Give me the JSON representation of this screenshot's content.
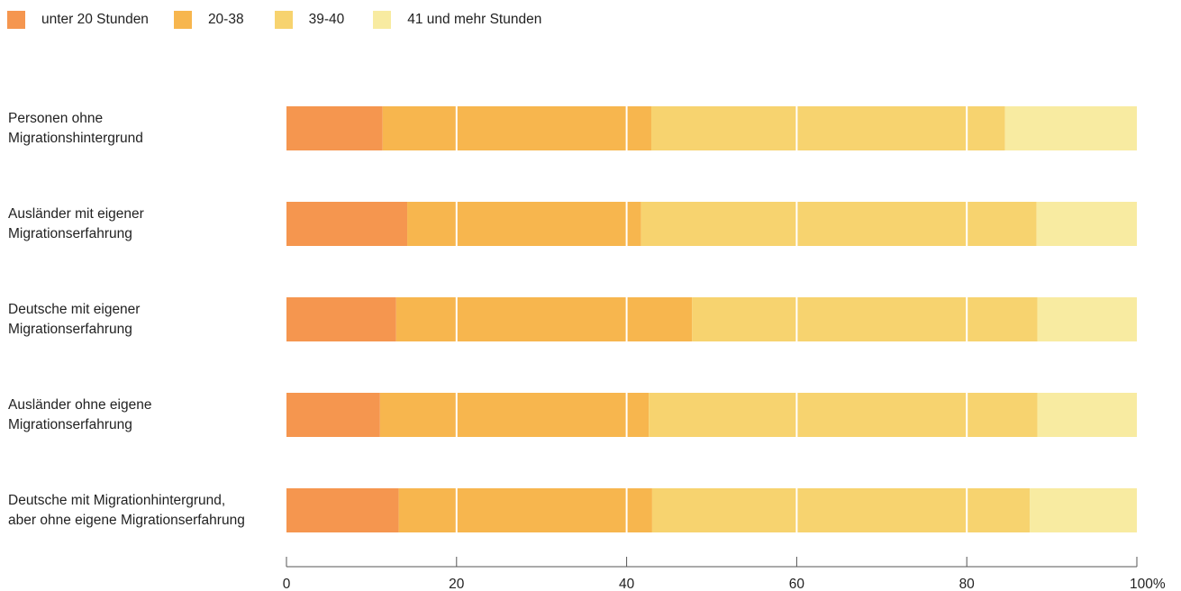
{
  "chart_data": {
    "type": "bar",
    "orientation": "horizontal",
    "stacked": true,
    "categories": [
      [
        "Personen ohne",
        "Migrationshintergrund"
      ],
      [
        "Ausländer mit eigener",
        "Migrationserfahrung"
      ],
      [
        "Deutsche mit eigener",
        "Migrationserfahrung"
      ],
      [
        "Ausländer ohne eigene",
        "Migrationserfahrung"
      ],
      [
        "Deutsche mit Migrationhintergrund,",
        "aber ohne eigene Migrationserfahrung"
      ]
    ],
    "series": [
      {
        "name": "unter 20 Stunden",
        "color": "#f5964f",
        "values": [
          11.3,
          14.2,
          12.9,
          11.0,
          13.2
        ]
      },
      {
        "name": "20-38",
        "color": "#f7b64e",
        "values": [
          31.6,
          27.5,
          34.8,
          31.6,
          29.8
        ]
      },
      {
        "name": "39-40",
        "color": "#f7d36f",
        "values": [
          41.6,
          46.5,
          40.6,
          45.7,
          44.4
        ]
      },
      {
        "name": "41 und mehr Stunden",
        "color": "#f8eba1",
        "values": [
          15.5,
          11.8,
          11.7,
          11.7,
          12.6
        ]
      }
    ],
    "xticks": [
      "0",
      "20",
      "40",
      "60",
      "80",
      "100%"
    ],
    "xlim": [
      0,
      100
    ],
    "grid": true,
    "legend_position": "top-left"
  }
}
